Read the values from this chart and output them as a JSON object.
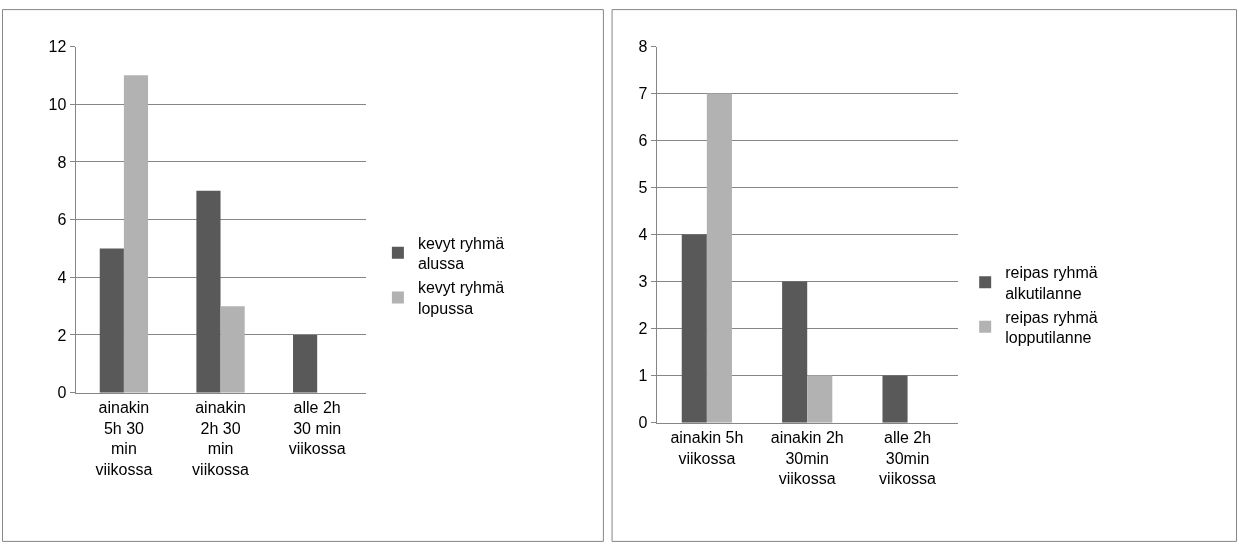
{
  "chart_data": [
    {
      "type": "bar",
      "categories": [
        "ainakin 5h 30 min viikossa",
        "ainakin 2h 30 min viikossa",
        "alle 2h 30 min viikossa"
      ],
      "series": [
        {
          "name": "kevyt ryhmä alussa",
          "color": "#595959",
          "values": [
            5,
            7,
            2
          ]
        },
        {
          "name": "kevyt ryhmä lopussa",
          "color": "#b2b2b2",
          "values": [
            11,
            3,
            0
          ]
        }
      ],
      "ylim": [
        0,
        12
      ],
      "yticks": [
        0,
        2,
        4,
        6,
        8,
        10,
        12
      ],
      "grid": "y",
      "legend": "right"
    },
    {
      "type": "bar",
      "categories": [
        "ainakin 5h viikossa",
        "ainakin 2h 30min viikossa",
        "alle 2h 30min viikossa"
      ],
      "series": [
        {
          "name": "reipas ryhmä alkutilanne",
          "color": "#595959",
          "values": [
            4,
            3,
            1
          ]
        },
        {
          "name": "reipas ryhmä lopputilanne",
          "color": "#b2b2b2",
          "values": [
            7,
            1,
            0
          ]
        }
      ],
      "ylim": [
        0,
        8
      ],
      "yticks": [
        0,
        1,
        2,
        3,
        4,
        5,
        6,
        7,
        8
      ],
      "grid": "y",
      "legend": "right"
    }
  ]
}
